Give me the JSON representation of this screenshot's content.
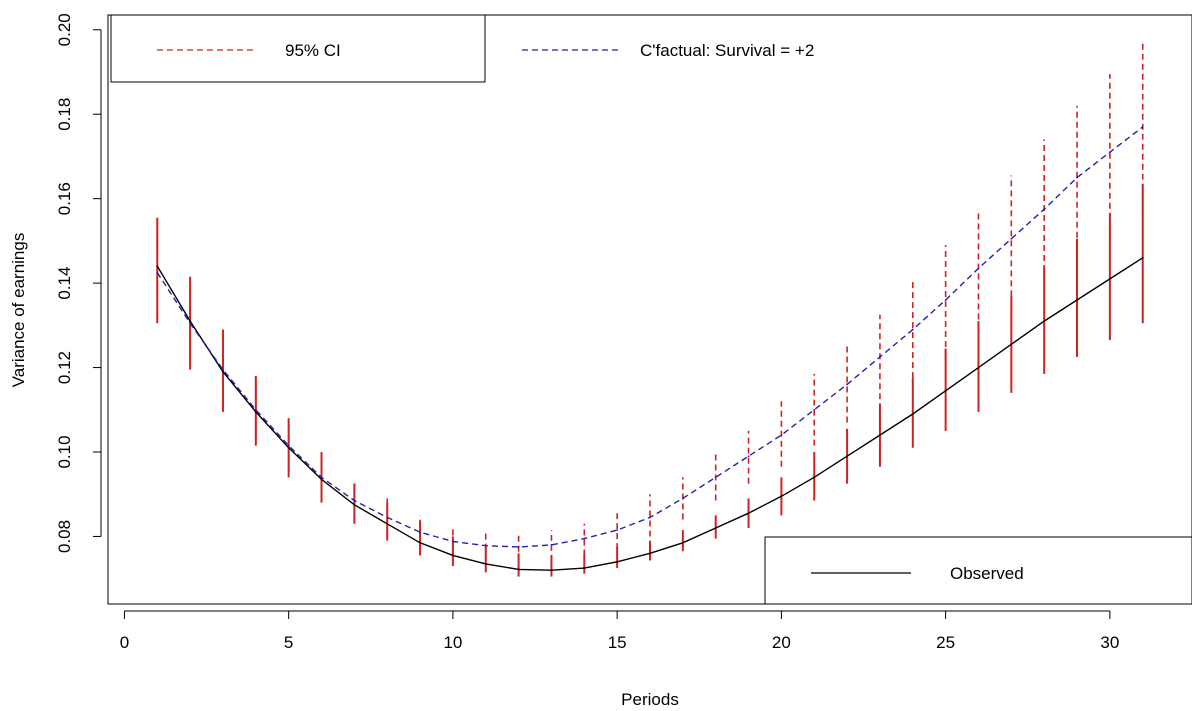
{
  "chart_data": {
    "type": "line",
    "xlabel": "Periods",
    "ylabel": "Variance of earnings",
    "xlim": [
      -0.5,
      32.5
    ],
    "ylim": [
      0.064,
      0.2035
    ],
    "x_ticks": [
      "0",
      "5",
      "10",
      "15",
      "20",
      "25",
      "30"
    ],
    "y_ticks": [
      "0.08",
      "0.10",
      "0.12",
      "0.14",
      "0.16",
      "0.18",
      "0.20"
    ],
    "x": [
      1,
      2,
      3,
      4,
      5,
      6,
      7,
      8,
      9,
      10,
      11,
      12,
      13,
      14,
      15,
      16,
      17,
      18,
      19,
      20,
      21,
      22,
      23,
      24,
      25,
      26,
      27,
      28,
      29,
      30,
      31
    ],
    "series": [
      {
        "name": "Observed",
        "color": "#000000",
        "style": "solid",
        "values": [
          0.144,
          0.131,
          0.119,
          0.1095,
          0.101,
          0.0935,
          0.0875,
          0.083,
          0.0785,
          0.0755,
          0.0735,
          0.0722,
          0.072,
          0.0725,
          0.074,
          0.076,
          0.0785,
          0.082,
          0.0855,
          0.0895,
          0.094,
          0.099,
          0.104,
          0.109,
          0.1145,
          0.12,
          0.1255,
          0.131,
          0.136,
          0.141,
          0.146
        ],
        "ci_low": [
          0.1305,
          0.1195,
          0.1095,
          0.1015,
          0.094,
          0.088,
          0.083,
          0.079,
          0.0755,
          0.073,
          0.0715,
          0.0705,
          0.0705,
          0.0712,
          0.0725,
          0.0743,
          0.0765,
          0.0795,
          0.082,
          0.085,
          0.0885,
          0.0925,
          0.0965,
          0.101,
          0.105,
          0.1095,
          0.114,
          0.1185,
          0.1225,
          0.1265,
          0.1305
        ],
        "ci_high": [
          0.1555,
          0.1415,
          0.129,
          0.118,
          0.108,
          0.1,
          0.0925,
          0.088,
          0.0835,
          0.08,
          0.0775,
          0.076,
          0.0755,
          0.076,
          0.0775,
          0.079,
          0.0815,
          0.085,
          0.089,
          0.094,
          0.1,
          0.1055,
          0.1115,
          0.1175,
          0.1245,
          0.131,
          0.137,
          0.144,
          0.1505,
          0.1565,
          0.1635
        ]
      },
      {
        "name": "C'factual: Survival = +2",
        "color": "#2222aa",
        "style": "dashed",
        "values": [
          0.1425,
          0.1305,
          0.1195,
          0.11,
          0.1015,
          0.094,
          0.0885,
          0.0845,
          0.081,
          0.0788,
          0.0778,
          0.0775,
          0.078,
          0.0795,
          0.0815,
          0.0845,
          0.089,
          0.094,
          0.099,
          0.104,
          0.11,
          0.116,
          0.1225,
          0.129,
          0.136,
          0.1435,
          0.1505,
          0.1575,
          0.165,
          0.171,
          0.177
        ],
        "ci_low": [
          0.132,
          0.1215,
          0.112,
          0.103,
          0.0955,
          0.089,
          0.084,
          0.0805,
          0.0778,
          0.0755,
          0.0745,
          0.074,
          0.0742,
          0.0755,
          0.077,
          0.08,
          0.084,
          0.0885,
          0.0925,
          0.0965,
          0.1015,
          0.107,
          0.1125,
          0.1175,
          0.1225,
          0.129,
          0.1345,
          0.1405,
          0.146,
          0.1505,
          0.155
        ],
        "ci_high": [
          0.153,
          0.1395,
          0.127,
          0.117,
          0.1075,
          0.0995,
          0.093,
          0.089,
          0.085,
          0.082,
          0.081,
          0.0805,
          0.0815,
          0.083,
          0.0855,
          0.09,
          0.094,
          0.1,
          0.105,
          0.112,
          0.1185,
          0.125,
          0.1325,
          0.1405,
          0.149,
          0.1575,
          0.1655,
          0.174,
          0.182,
          0.1895,
          0.197
        ]
      }
    ],
    "ci_label": "95% CI",
    "ci_color": "#cc2222",
    "legend_placement": [
      "top-left",
      "top-center",
      "bottom-right"
    ],
    "grid": false
  }
}
